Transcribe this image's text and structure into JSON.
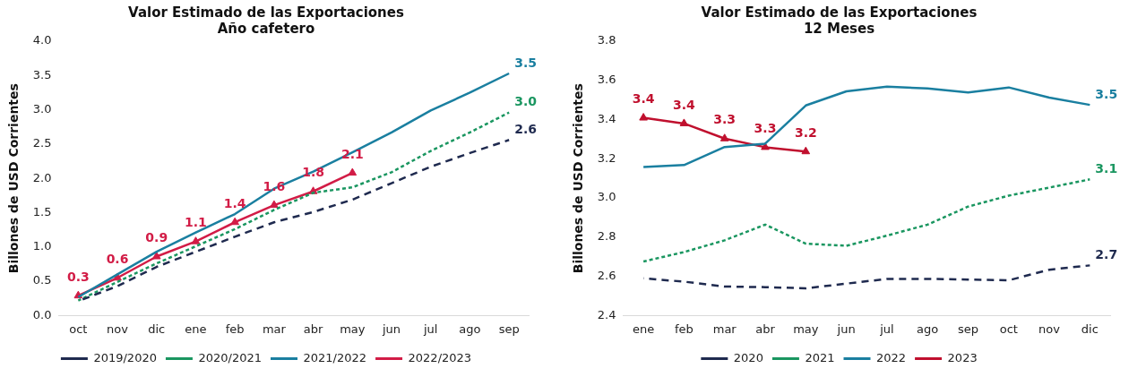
{
  "chart_data": [
    {
      "type": "line",
      "title": [
        "Valor Estimado de las Exportaciones",
        "Año cafetero"
      ],
      "ylabel": "Billones de USD Corrientes",
      "categories": [
        "oct",
        "nov",
        "dic",
        "ene",
        "feb",
        "mar",
        "abr",
        "may",
        "jun",
        "jul",
        "ago",
        "sep"
      ],
      "ylim": [
        0,
        4
      ],
      "yticks": [
        {
          "value": 0,
          "label": "0.0"
        },
        0.5,
        {
          "value": 1,
          "label": "1.0"
        },
        1.5,
        {
          "value": 2,
          "label": "2.0"
        },
        2.5,
        {
          "value": 3,
          "label": "3.0"
        },
        3.5,
        {
          "value": 4,
          "label": "4.0"
        }
      ],
      "grid": false,
      "legend": "bottom",
      "series": [
        {
          "name": "2019/2020",
          "color": "#1f2a4f",
          "line_style": "dashed",
          "marker": "none",
          "values": [
            0.21,
            0.43,
            0.71,
            0.93,
            1.15,
            1.36,
            1.51,
            1.69,
            1.93,
            2.17,
            2.37,
            2.56
          ],
          "value_labels": [
            null,
            null,
            null,
            null,
            null,
            null,
            null,
            null,
            null,
            null,
            null,
            "2.6"
          ]
        },
        {
          "name": "2020/2021",
          "color": "#1a9660",
          "line_style": "dotted",
          "marker": "none",
          "values": [
            0.22,
            0.49,
            0.76,
            1.01,
            1.26,
            1.54,
            1.79,
            1.87,
            2.09,
            2.4,
            2.67,
            2.96
          ],
          "value_labels": [
            null,
            null,
            null,
            null,
            null,
            null,
            null,
            null,
            null,
            null,
            null,
            "3.0"
          ]
        },
        {
          "name": "2021/2022",
          "color": "#1a7fa0",
          "line_style": "solid",
          "marker": "none",
          "values": [
            0.27,
            0.6,
            0.93,
            1.21,
            1.48,
            1.85,
            2.1,
            2.38,
            2.67,
            2.99,
            3.25,
            3.53
          ],
          "value_labels": [
            null,
            null,
            null,
            null,
            null,
            null,
            null,
            null,
            null,
            null,
            null,
            "3.5"
          ]
        },
        {
          "name": "2022/2023",
          "color": "#d21c46",
          "line_style": "solid",
          "marker": "triangle",
          "values": [
            0.29,
            0.55,
            0.86,
            1.08,
            1.36,
            1.61,
            1.81,
            2.08,
            null,
            null,
            null,
            null
          ],
          "value_labels": [
            "0.3",
            "0.6",
            "0.9",
            "1.1",
            "1.4",
            "1.6",
            "1.8",
            "2.1",
            null,
            null,
            null,
            null
          ]
        }
      ]
    },
    {
      "type": "line",
      "title": [
        "Valor Estimado de las Exportaciones",
        "12 Meses"
      ],
      "ylabel": "Billones de USD Corrientes",
      "categories": [
        "ene",
        "feb",
        "mar",
        "abr",
        "may",
        "jun",
        "jul",
        "ago",
        "sep",
        "oct",
        "nov",
        "dic"
      ],
      "ylim": [
        2.4,
        3.8
      ],
      "yticks": [
        2.4,
        2.6,
        2.8,
        {
          "value": 3,
          "label": "3.0"
        },
        3.2,
        3.4,
        3.6,
        3.8
      ],
      "grid": false,
      "legend": "bottom",
      "series": [
        {
          "name": "2020",
          "color": "#1f2a4f",
          "line_style": "dashed",
          "marker": "none",
          "values": [
            2.59,
            2.573,
            2.548,
            2.545,
            2.539,
            2.563,
            2.587,
            2.587,
            2.584,
            2.58,
            2.634,
            2.656
          ],
          "value_labels": [
            null,
            null,
            null,
            null,
            null,
            null,
            null,
            null,
            null,
            null,
            null,
            "2.7"
          ]
        },
        {
          "name": "2021",
          "color": "#1a9660",
          "line_style": "dotted",
          "marker": "none",
          "values": [
            2.676,
            2.724,
            2.784,
            2.864,
            2.767,
            2.756,
            2.808,
            2.864,
            2.956,
            3.012,
            3.053,
            3.095
          ],
          "value_labels": [
            null,
            null,
            null,
            null,
            null,
            null,
            null,
            null,
            null,
            null,
            null,
            "3.1"
          ]
        },
        {
          "name": "2022",
          "color": "#1a7fa0",
          "line_style": "solid",
          "marker": "none",
          "values": [
            3.158,
            3.168,
            3.26,
            3.277,
            3.472,
            3.544,
            3.568,
            3.559,
            3.538,
            3.564,
            3.512,
            3.475
          ],
          "value_labels": [
            null,
            null,
            null,
            null,
            null,
            null,
            null,
            null,
            null,
            null,
            null,
            "3.5"
          ]
        },
        {
          "name": "2023",
          "color": "#c0102e",
          "line_style": "solid",
          "marker": "triangle",
          "values": [
            3.409,
            3.38,
            3.303,
            3.259,
            3.237,
            null,
            null,
            null,
            null,
            null,
            null,
            null
          ],
          "value_labels": [
            "3.4",
            "3.4",
            "3.3",
            "3.3",
            "3.2",
            null,
            null,
            null,
            null,
            null,
            null,
            null
          ]
        }
      ]
    }
  ]
}
